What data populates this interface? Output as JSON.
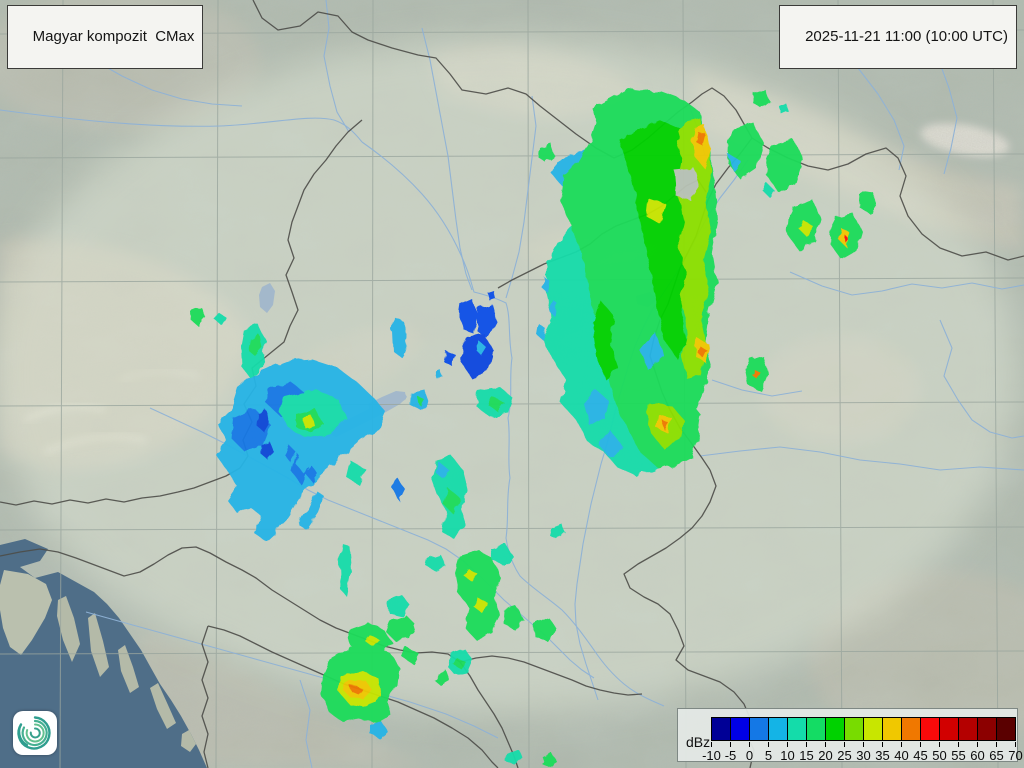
{
  "header": {
    "product_label": "Magyar kompozit  CMax",
    "timestamp_label": "2025-11-21 11:00 (10:00 UTC)"
  },
  "legend": {
    "unit": "dBz",
    "tick_values": [
      "-10",
      "-5",
      "0",
      "5",
      "10",
      "15",
      "20",
      "25",
      "30",
      "35",
      "40",
      "45",
      "50",
      "55",
      "60",
      "65",
      "70"
    ],
    "colors": [
      "#000096",
      "#0000e6",
      "#1478e6",
      "#14b4e6",
      "#14dcaa",
      "#14dc64",
      "#00d200",
      "#78dc00",
      "#c8e600",
      "#f0c800",
      "#f07800",
      "#fa0a0a",
      "#d20000",
      "#b40000",
      "#8c0000",
      "#5a0000"
    ]
  },
  "logo": {
    "name": "hungaromet-spiral-logo",
    "background": "#ffffff",
    "spiral_colors": [
      "#2f9e8f",
      "#45b092",
      "#62c08f",
      "#36a08c"
    ]
  },
  "map": {
    "land_color": "#b2bdb3",
    "coverage_tint": "#e8eedd",
    "sea_color": "#4f6e88",
    "lake_color": "#a3b8cb",
    "border_color": "#4c4c48",
    "river_color": "#8fb2d6",
    "graticule_color": "#9aa69e"
  },
  "radar_echoes": [
    {
      "c": "#16dcaa",
      "p": "560,240 548,262 545,290 552,318 542,338 552,358 566,380 560,402 576,420 588,442 604,452 618,468 636,476 654,470 668,462 652,440 640,420 628,398 616,368 606,336 598,300 590,266 582,238 572,224"
    },
    {
      "c": "#28b4e6",
      "p": "585,150 562,158 550,172 562,186 580,176 592,160"
    },
    {
      "c": "#1edc5a",
      "p": "592,108 628,88 662,92 684,100 700,112 706,134 712,162 716,192 718,222 712,252 717,282 709,312 705,342 711,368 703,392 694,416 700,436 692,458 672,468 652,455 634,440 620,415 610,385 602,352 595,318 588,284 580,250 570,222 560,200 564,176 578,162 590,142 596,124"
    },
    {
      "c": "#00d200",
      "p": "620,140 660,120 688,132 694,160 686,190 690,220 682,250 688,280 680,310 686,340 678,360 664,340 656,300 648,260 640,220 632,180 624,158"
    },
    {
      "c": "#00d200",
      "p": "600,300 614,316 610,344 618,368 606,380 596,356 592,326"
    },
    {
      "c": "#8ce000",
      "p": "684,122 700,118 708,142 712,172 705,202 711,232 703,262 709,292 701,322 707,350 699,374 688,380 682,356 688,330 680,302 686,274 678,246 684,218 676,190 682,162 676,140"
    },
    {
      "c": "#f0c800",
      "p": "694,128 706,126 710,148 704,168 696,158 692,142"
    },
    {
      "c": "#f07800",
      "p": "698,132 706,134 703,146 696,142"
    },
    {
      "c": "#f0c800",
      "p": "697,338 709,344 705,362 695,356"
    },
    {
      "c": "#f07800",
      "p": "699,345 706,349 702,357 697,352"
    },
    {
      "c": "#c8e600",
      "p": "648,198 666,204 660,224 646,216"
    },
    {
      "c": "#b9c3b5",
      "p": "674,170 694,168 699,186 690,200 676,196"
    },
    {
      "c": "#28b4e6",
      "p": "655,332 640,350 648,370 664,356"
    },
    {
      "c": "#28b4e6",
      "p": "596,390 584,404 590,426 604,418 608,400"
    },
    {
      "c": "#28b4e6",
      "p": "610,430 598,444 610,458 624,448"
    },
    {
      "c": "#1edc5a",
      "p": "628,390 658,388 686,394 700,414 696,442 680,462 658,468 640,452 628,428 620,406"
    },
    {
      "c": "#8ce000",
      "p": "650,404 672,406 684,420 680,440 663,448 650,432 646,416"
    },
    {
      "c": "#f0c800",
      "p": "658,414 672,418 669,434 656,428"
    },
    {
      "c": "#f07800",
      "p": "661,419 669,423 665,431"
    },
    {
      "c": "#1edc5a",
      "p": "733,128 753,122 763,142 756,168 740,179 727,162 728,142"
    },
    {
      "c": "#28b4e6",
      "p": "726,152 734,172 742,162"
    },
    {
      "c": "#1edc5a",
      "p": "772,146 794,140 803,160 796,183 779,193 766,175 768,156"
    },
    {
      "c": "#16dcaa",
      "p": "766,182 776,192 770,198 762,190"
    },
    {
      "c": "#1edc5a",
      "p": "793,206 813,200 821,219 815,241 799,251 787,234 789,214"
    },
    {
      "c": "#c8e600",
      "p": "803,220 813,226 807,237 799,229"
    },
    {
      "c": "#1edc5a",
      "p": "836,217 853,213 861,230 855,251 841,259 830,244 831,227"
    },
    {
      "c": "#f0c800",
      "p": "841,228 851,234 846,247 838,239"
    },
    {
      "c": "#fa0a0a",
      "p": "845,235 849,239 846,243"
    },
    {
      "c": "#1edc5a",
      "p": "860,195 872,191 877,204 870,214 859,207"
    },
    {
      "c": "#1edc5a",
      "p": "750,360 763,356 768,374 761,391 749,386 746,370"
    },
    {
      "c": "#f07800",
      "p": "754,369 760,372 757,379 752,375"
    },
    {
      "c": "#1edc5a",
      "p": "754,94 766,90 770,101 761,108 752,102"
    },
    {
      "c": "#16dcaa",
      "p": "779,106 786,103 789,112 782,115"
    },
    {
      "c": "#1edc5a",
      "p": "539,147 551,143 555,156 546,163 538,157"
    },
    {
      "c": "#28b4e6",
      "p": "394,317 403,321 408,340 402,358 393,351 392,331"
    },
    {
      "c": "#1050e8",
      "p": "461,304 472,299 478,315 473,333 464,330 459,317"
    },
    {
      "c": "#1050e8",
      "p": "477,309 492,304 497,322 488,339 477,331"
    },
    {
      "c": "#0e46e0",
      "p": "467,337 484,333 493,350 487,372 472,379 461,362 463,346"
    },
    {
      "c": "#28b4e6",
      "p": "479,341 486,347 481,355 475,349"
    },
    {
      "c": "#1050e8",
      "p": "446,351 456,355 452,366 443,361"
    },
    {
      "c": "#1050e8",
      "p": "488,293 494,291 496,299 490,301"
    },
    {
      "c": "#28b4e6",
      "p": "544,277 549,280 547,292 542,288"
    },
    {
      "c": "#28b4e6",
      "p": "552,299 557,303 555,317 550,312"
    },
    {
      "c": "#28b4e6",
      "p": "539,324 545,328 543,340 537,335"
    },
    {
      "c": "#16dcaa",
      "p": "478,391 500,387 513,398 508,413 490,417 477,407"
    },
    {
      "c": "#1edc5a",
      "p": "492,397 504,402 497,411 488,405"
    },
    {
      "c": "#28b4e6",
      "p": "411,393 425,390 429,401 421,410 410,405"
    },
    {
      "c": "#1edc5a",
      "p": "417,396 424,399 420,406"
    },
    {
      "c": "#28b4e6",
      "p": "436,372 441,370 443,377 438,380"
    },
    {
      "c": "#28b4e6",
      "p": "238,388 260,371 286,361 312,359 337,367 357,382 374,398 386,412 379,429 361,439 345,453 329,469 312,483 299,499 288,516 277,531 266,541 254,533 261,516 249,506 237,513 227,500 237,486 227,470 216,455 226,440 218,424 231,411"
    },
    {
      "c": "#1878e6",
      "p": "233,419 255,409 271,425 263,446 244,451 231,438"
    },
    {
      "c": "#1878e6",
      "p": "268,389 290,381 306,394 299,412 280,416 266,403"
    },
    {
      "c": "#0f46d8",
      "p": "258,414 266,410 270,422 264,432 257,426"
    },
    {
      "c": "#0f46d8",
      "p": "262,446 270,442 274,452 267,459 260,453"
    },
    {
      "c": "#16dcaa",
      "p": "283,397 315,389 339,400 346,418 330,433 307,439 289,428 279,412"
    },
    {
      "c": "#1edc5a",
      "p": "296,414 316,409 323,423 311,432 296,427"
    },
    {
      "c": "#c8e600",
      "p": "303,418 312,416 314,425 305,428"
    },
    {
      "c": "#1878e6",
      "p": "297,453 309,468 302,486 292,472"
    },
    {
      "c": "#16dcaa",
      "p": "350,460 366,469 359,485 346,477"
    },
    {
      "c": "#28b4e6",
      "p": "316,490 308,508 298,524 306,530 318,512 324,496"
    },
    {
      "c": "#1878e6",
      "p": "288,444 296,452 290,462 284,454"
    },
    {
      "c": "#28b4e6",
      "p": "300,452 310,462 304,474 296,464"
    },
    {
      "c": "#1878e6",
      "p": "312,466 318,474 312,482 306,474"
    },
    {
      "c": "#16dcaa",
      "p": "244,330 258,324 266,341 262,366 251,379 242,367 241,346"
    },
    {
      "c": "#1edc5a",
      "p": "250,338 259,334 262,348 255,356 248,350"
    },
    {
      "c": "#1edc5a",
      "p": "191,311 201,307 206,318 198,326 190,319"
    },
    {
      "c": "#16dcaa",
      "p": "218,312 226,317 221,325 214,319"
    },
    {
      "c": "#16dcaa",
      "p": "436,460 452,456 463,470 468,490 460,508 465,524 455,540 442,532 446,511 437,494 431,477"
    },
    {
      "c": "#28b4e6",
      "p": "438,461 449,470 443,479 434,471"
    },
    {
      "c": "#1edc5a",
      "p": "448,488 460,498 453,514 443,504"
    },
    {
      "c": "#1878e6",
      "p": "397,477 405,489 399,501 392,488"
    },
    {
      "c": "#16dcaa",
      "p": "343,544 350,547 352,571 347,597 341,590 340,563"
    },
    {
      "c": "#1edc5a",
      "p": "460,556 479,550 493,559 501,578 494,598 500,615 491,632 477,641 465,628 470,609 459,594 455,573"
    },
    {
      "c": "#c8e600",
      "p": "478,598 488,603 482,613 473,606"
    },
    {
      "c": "#c8e600",
      "p": "468,568 477,573 471,581 463,575"
    },
    {
      "c": "#16dcaa",
      "p": "491,549 506,544 513,556 505,566 493,561"
    },
    {
      "c": "#16dcaa",
      "p": "428,558 440,554 445,565 436,572 426,566"
    },
    {
      "c": "#1edc5a",
      "p": "504,611 517,607 523,619 514,630 503,623"
    },
    {
      "c": "#1edc5a",
      "p": "534,624 548,617 557,629 548,642 535,637"
    },
    {
      "c": "#1edc5a",
      "p": "351,629 368,623 383,629 392,642 383,654 366,656 352,647 347,637"
    },
    {
      "c": "#c8e600",
      "p": "370,635 380,640 373,647 365,641"
    },
    {
      "c": "#1edc5a",
      "p": "389,621 406,615 416,625 410,639 395,641 385,631"
    },
    {
      "c": "#16dcaa",
      "p": "387,601 402,595 410,605 402,616 389,613"
    },
    {
      "c": "#1edc5a",
      "p": "406,647 419,653 413,664 402,657"
    },
    {
      "c": "#1edc5a",
      "p": "437,674 446,670 450,681 441,686 434,680"
    },
    {
      "c": "#1edc5a",
      "p": "330,660 352,648 373,646 391,654 400,668 398,686 387,701 391,715 377,723 359,719 343,722 329,712 321,694 323,676"
    },
    {
      "c": "#c8e600",
      "p": "340,676 362,670 379,679 381,696 368,707 349,704 338,691"
    },
    {
      "c": "#f0c800",
      "p": "346,683 365,680 372,690 363,699 349,696 342,689"
    },
    {
      "c": "#f07800",
      "p": "350,686 362,688 358,694 351,691"
    },
    {
      "c": "#28b4e6",
      "p": "370,725 381,721 387,731 379,738 369,733"
    },
    {
      "c": "#16dcaa",
      "p": "453,654 465,649 473,660 468,672 455,675 447,666"
    },
    {
      "c": "#1edc5a",
      "p": "457,658 466,662 461,669 453,664"
    },
    {
      "c": "#16dcaa",
      "p": "506,753 517,748 524,759 516,766 505,761"
    },
    {
      "c": "#1edc5a",
      "p": "543,757 552,753 557,762 549,767 541,763"
    },
    {
      "c": "#16dcaa",
      "p": "551,527 561,523 566,533 558,540 549,535"
    }
  ]
}
